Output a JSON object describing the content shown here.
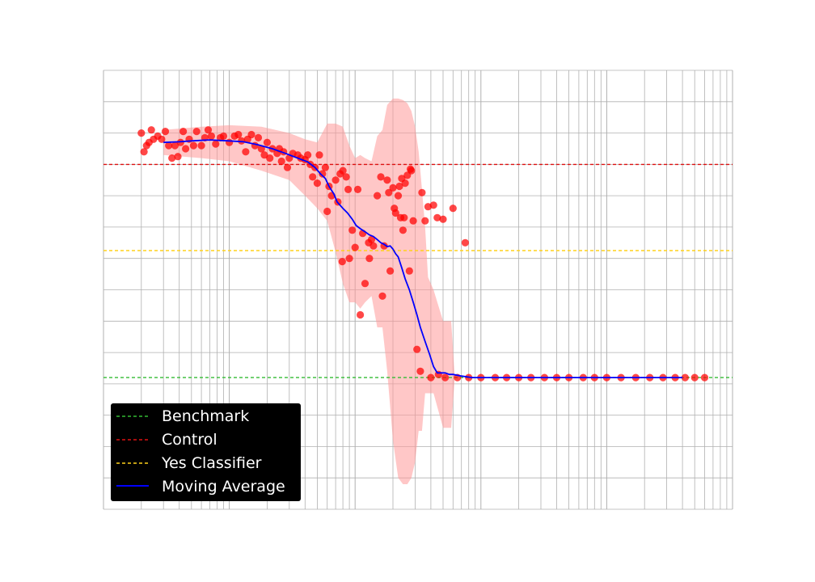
{
  "chart_data": {
    "type": "scatter",
    "x_scale": "log",
    "y_scale": "linear",
    "xlim": [
      10,
      1000000
    ],
    "ylim": [
      0,
      14
    ],
    "grid": true,
    "title": "",
    "xlabel": "",
    "ylabel": "",
    "legend": {
      "placement": "lower-left",
      "background": "#000000",
      "entries": [
        {
          "label": "Benchmark",
          "color": "#33bb33",
          "style": "dashed"
        },
        {
          "label": "Control",
          "color": "#dd1111",
          "style": "dashed"
        },
        {
          "label": "Yes Classifier",
          "color": "#ffd11a",
          "style": "dashed"
        },
        {
          "label": "Moving Average",
          "color": "#0000ff",
          "style": "solid"
        }
      ]
    },
    "reference_lines": [
      {
        "name": "Benchmark",
        "y": 4.2,
        "color": "#33bb33"
      },
      {
        "name": "Control",
        "y": 11.0,
        "color": "#dd1111"
      },
      {
        "name": "Yes Classifier",
        "y": 8.25,
        "color": "#ffd11a"
      }
    ],
    "series": [
      {
        "name": "",
        "kind": "points",
        "color": "#ff0000",
        "points": [
          [
            20,
            12.0
          ],
          [
            21,
            11.4
          ],
          [
            22,
            11.6
          ],
          [
            23,
            11.7
          ],
          [
            24,
            12.1
          ],
          [
            25,
            11.8
          ],
          [
            27,
            11.9
          ],
          [
            29,
            11.8
          ],
          [
            31,
            12.05
          ],
          [
            33,
            11.6
          ],
          [
            35,
            11.2
          ],
          [
            37,
            11.6
          ],
          [
            39,
            11.25
          ],
          [
            41,
            11.7
          ],
          [
            43,
            12.05
          ],
          [
            45,
            11.5
          ],
          [
            48,
            11.8
          ],
          [
            52,
            11.6
          ],
          [
            55,
            12.05
          ],
          [
            60,
            11.6
          ],
          [
            64,
            11.85
          ],
          [
            68,
            12.1
          ],
          [
            72,
            11.9
          ],
          [
            78,
            11.65
          ],
          [
            85,
            11.85
          ],
          [
            90,
            11.9
          ],
          [
            100,
            11.7
          ],
          [
            110,
            11.9
          ],
          [
            118,
            11.95
          ],
          [
            125,
            11.75
          ],
          [
            135,
            11.4
          ],
          [
            140,
            11.8
          ],
          [
            150,
            11.95
          ],
          [
            160,
            11.6
          ],
          [
            170,
            11.85
          ],
          [
            180,
            11.5
          ],
          [
            190,
            11.3
          ],
          [
            200,
            11.7
          ],
          [
            210,
            11.2
          ],
          [
            220,
            11.5
          ],
          [
            240,
            11.35
          ],
          [
            250,
            11.5
          ],
          [
            260,
            11.1
          ],
          [
            270,
            11.4
          ],
          [
            290,
            10.9
          ],
          [
            300,
            11.2
          ],
          [
            320,
            11.35
          ],
          [
            350,
            11.3
          ],
          [
            370,
            11.2
          ],
          [
            400,
            11.15
          ],
          [
            420,
            11.3
          ],
          [
            440,
            11.0
          ],
          [
            460,
            10.6
          ],
          [
            480,
            10.9
          ],
          [
            500,
            10.4
          ],
          [
            520,
            11.3
          ],
          [
            550,
            10.7
          ],
          [
            580,
            10.9
          ],
          [
            600,
            9.5
          ],
          [
            620,
            10.3
          ],
          [
            650,
            10.0
          ],
          [
            700,
            10.5
          ],
          [
            730,
            9.8
          ],
          [
            760,
            10.7
          ],
          [
            790,
            7.9
          ],
          [
            800,
            10.8
          ],
          [
            850,
            10.6
          ],
          [
            880,
            10.2
          ],
          [
            900,
            8.0
          ],
          [
            950,
            8.9
          ],
          [
            1000,
            8.35
          ],
          [
            1050,
            10.2
          ],
          [
            1100,
            6.2
          ],
          [
            1150,
            8.8
          ],
          [
            1200,
            7.2
          ],
          [
            1280,
            8.5
          ],
          [
            1300,
            8.0
          ],
          [
            1350,
            8.6
          ],
          [
            1400,
            8.4
          ],
          [
            1500,
            10.0
          ],
          [
            1600,
            10.6
          ],
          [
            1650,
            6.8
          ],
          [
            1700,
            8.4
          ],
          [
            1800,
            10.5
          ],
          [
            1850,
            10.1
          ],
          [
            1900,
            7.6
          ],
          [
            2000,
            10.25
          ],
          [
            2050,
            9.6
          ],
          [
            2100,
            9.45
          ],
          [
            2200,
            10.0
          ],
          [
            2250,
            10.3
          ],
          [
            2300,
            9.3
          ],
          [
            2350,
            10.55
          ],
          [
            2400,
            8.9
          ],
          [
            2450,
            9.3
          ],
          [
            2500,
            10.4
          ],
          [
            2600,
            10.65
          ],
          [
            2700,
            7.6
          ],
          [
            2750,
            10.85
          ],
          [
            2800,
            10.8
          ],
          [
            2900,
            9.2
          ],
          [
            3100,
            5.1
          ],
          [
            3300,
            4.4
          ],
          [
            3400,
            10.1
          ],
          [
            3600,
            9.2
          ],
          [
            3800,
            9.65
          ],
          [
            4200,
            9.7
          ],
          [
            4500,
            9.3
          ],
          [
            4600,
            4.3
          ],
          [
            5000,
            9.25
          ],
          [
            5200,
            4.2
          ],
          [
            6000,
            9.6
          ],
          [
            7500,
            8.5
          ],
          [
            4000,
            4.2
          ],
          [
            6500,
            4.2
          ],
          [
            8000,
            4.2
          ],
          [
            10000,
            4.2
          ],
          [
            13000,
            4.2
          ],
          [
            16000,
            4.2
          ],
          [
            20000,
            4.2
          ],
          [
            25000,
            4.2
          ],
          [
            32000,
            4.2
          ],
          [
            40000,
            4.2
          ],
          [
            50000,
            4.2
          ],
          [
            65000,
            4.2
          ],
          [
            80000,
            4.2
          ],
          [
            100000,
            4.2
          ],
          [
            130000,
            4.2
          ],
          [
            170000,
            4.2
          ],
          [
            220000,
            4.2
          ],
          [
            280000,
            4.2
          ],
          [
            350000,
            4.2
          ],
          [
            420000,
            4.2
          ],
          [
            500000,
            4.2
          ],
          [
            600000,
            4.2
          ]
        ]
      },
      {
        "name": "Moving Average",
        "kind": "line",
        "color": "#0000ff",
        "points": [
          [
            30,
            11.7
          ],
          [
            40,
            11.72
          ],
          [
            50,
            11.75
          ],
          [
            70,
            11.78
          ],
          [
            100,
            11.75
          ],
          [
            130,
            11.72
          ],
          [
            170,
            11.62
          ],
          [
            220,
            11.5
          ],
          [
            280,
            11.35
          ],
          [
            350,
            11.2
          ],
          [
            420,
            11.08
          ],
          [
            480,
            10.9
          ],
          [
            530,
            10.7
          ],
          [
            580,
            10.55
          ],
          [
            620,
            10.3
          ],
          [
            680,
            10.05
          ],
          [
            720,
            9.8
          ],
          [
            800,
            9.6
          ],
          [
            870,
            9.45
          ],
          [
            950,
            9.25
          ],
          [
            1020,
            9.05
          ],
          [
            1100,
            8.95
          ],
          [
            1200,
            8.85
          ],
          [
            1300,
            8.75
          ],
          [
            1400,
            8.7
          ],
          [
            1500,
            8.6
          ],
          [
            1600,
            8.5
          ],
          [
            1700,
            8.45
          ],
          [
            1800,
            8.38
          ],
          [
            1900,
            8.4
          ],
          [
            2000,
            8.3
          ],
          [
            2100,
            8.15
          ],
          [
            2200,
            8.05
          ],
          [
            2350,
            7.7
          ],
          [
            2500,
            7.35
          ],
          [
            2700,
            7.0
          ],
          [
            2900,
            6.6
          ],
          [
            3100,
            6.2
          ],
          [
            3300,
            5.8
          ],
          [
            3600,
            5.35
          ],
          [
            3900,
            4.95
          ],
          [
            4200,
            4.55
          ],
          [
            4500,
            4.35
          ],
          [
            5200,
            4.35
          ],
          [
            5600,
            4.3
          ],
          [
            6000,
            4.3
          ],
          [
            7000,
            4.25
          ],
          [
            8500,
            4.2
          ],
          [
            20000,
            4.2
          ],
          [
            100000,
            4.2
          ],
          [
            400000,
            4.2
          ]
        ]
      },
      {
        "name": "",
        "kind": "band",
        "color": "#ff9999",
        "points": [
          [
            30,
            11.3,
            12.1
          ],
          [
            60,
            11.2,
            12.2
          ],
          [
            100,
            11.1,
            12.25
          ],
          [
            180,
            10.8,
            12.2
          ],
          [
            300,
            10.5,
            12.0
          ],
          [
            400,
            10.0,
            11.8
          ],
          [
            500,
            9.6,
            11.7
          ],
          [
            600,
            9.2,
            12.3
          ],
          [
            700,
            8.2,
            12.3
          ],
          [
            800,
            7.2,
            12.2
          ],
          [
            900,
            6.6,
            11.6
          ],
          [
            1000,
            6.6,
            11.2
          ],
          [
            1100,
            6.4,
            11.3
          ],
          [
            1200,
            6.6,
            11.2
          ],
          [
            1350,
            6.8,
            11.1
          ],
          [
            1500,
            5.8,
            11.9
          ],
          [
            1650,
            5.8,
            12.1
          ],
          [
            1800,
            4.4,
            12.9
          ],
          [
            2000,
            2.2,
            13.1
          ],
          [
            2200,
            1.0,
            13.1
          ],
          [
            2400,
            0.8,
            13.05
          ],
          [
            2600,
            0.8,
            12.95
          ],
          [
            2800,
            1.0,
            12.7
          ],
          [
            3000,
            1.5,
            12.2
          ],
          [
            3200,
            2.5,
            11.4
          ],
          [
            3400,
            2.5,
            10.2
          ],
          [
            3600,
            3.7,
            9.0
          ],
          [
            3800,
            3.7,
            7.4
          ],
          [
            4200,
            3.7,
            7.0
          ],
          [
            5000,
            2.6,
            6.0
          ],
          [
            5800,
            2.6,
            6.0
          ],
          [
            6200,
            4.2,
            4.2
          ],
          [
            600000,
            4.2,
            4.2
          ]
        ]
      }
    ]
  }
}
